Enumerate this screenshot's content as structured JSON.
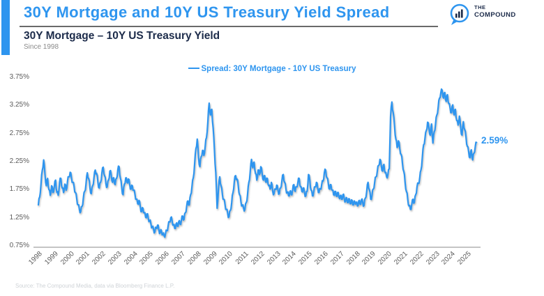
{
  "page": {
    "background": "#ffffff",
    "accent_color": "#2E95EF",
    "navy_color": "#1C2B4A"
  },
  "header": {
    "title": "30Y Mortgage and 10Y US Treasury Yield Spread",
    "logo": {
      "line1": "THE",
      "line2": "COMPOUND"
    }
  },
  "chart_header": {
    "title": "30Y Mortgage – 10Y US Treasury Yield",
    "subtitle": "Since 1998"
  },
  "legend": {
    "label": "Spread: 30Y Mortgage - 10Y US Treasury"
  },
  "annotation": {
    "last_value": "2.59%"
  },
  "footer": {
    "source": "Source: The Compound Media, data via Bloomberg Finance L.P."
  },
  "chart_data": {
    "type": "line",
    "title": "30Y Mortgage – 10Y US Treasury Yield",
    "xlabel": "",
    "ylabel": "",
    "unit": "%",
    "ylim": [
      0.75,
      3.75
    ],
    "xlim": [
      1998,
      2025.7
    ],
    "grid": false,
    "legend_position": "top-center",
    "x_tick_labels": [
      "1998",
      "1999",
      "2000",
      "2001",
      "2002",
      "2003",
      "2004",
      "2005",
      "2006",
      "2007",
      "2008",
      "2009",
      "2010",
      "2011",
      "2012",
      "2013",
      "2014",
      "2015",
      "2016",
      "2017",
      "2018",
      "2019",
      "2020",
      "2021",
      "2022",
      "2023",
      "2024",
      "2025"
    ],
    "y_tick_labels": [
      "0.75%",
      "1.25%",
      "1.75%",
      "2.25%",
      "2.75%",
      "3.25%",
      "3.75%"
    ],
    "last_value_pct": 2.59,
    "series": [
      {
        "name": "Spread: 30Y Mortgage - 10Y US Treasury",
        "color": "#2E95EF",
        "x_start_year": 1998,
        "x_frequency": "monthly",
        "values": [
          1.48,
          1.62,
          1.85,
          2.1,
          2.28,
          2.02,
          1.82,
          1.95,
          1.75,
          1.65,
          1.82,
          1.7,
          1.8,
          1.92,
          1.7,
          1.65,
          1.88,
          1.95,
          1.78,
          1.7,
          1.85,
          1.74,
          1.9,
          1.98,
          2.06,
          1.96,
          1.88,
          1.8,
          1.7,
          1.58,
          1.48,
          1.4,
          1.36,
          1.45,
          1.6,
          1.72,
          1.85,
          2.05,
          1.95,
          1.78,
          1.68,
          1.82,
          1.96,
          2.1,
          2.04,
          1.88,
          1.78,
          1.88,
          2.05,
          2.15,
          2.0,
          1.86,
          1.8,
          1.92,
          2.08,
          2.02,
          1.88,
          1.96,
          1.84,
          1.95,
          2.1,
          2.16,
          1.95,
          1.78,
          1.66,
          1.85,
          1.96,
          1.88,
          1.94,
          1.84,
          1.76,
          1.82,
          1.74,
          1.66,
          1.58,
          1.5,
          1.56,
          1.44,
          1.36,
          1.42,
          1.34,
          1.26,
          1.32,
          1.24,
          1.2,
          1.14,
          1.08,
          1.04,
          1.0,
          1.08,
          1.12,
          1.04,
          0.98,
          1.02,
          0.95,
          0.93,
          0.96,
          1.02,
          1.1,
          1.18,
          1.25,
          1.2,
          1.12,
          1.06,
          1.14,
          1.1,
          1.18,
          1.14,
          1.2,
          1.28,
          1.22,
          1.34,
          1.45,
          1.55,
          1.48,
          1.66,
          1.8,
          1.96,
          2.2,
          2.48,
          2.65,
          2.32,
          2.16,
          2.34,
          2.45,
          2.36,
          2.52,
          2.68,
          2.95,
          3.29,
          3.08,
          3.18,
          2.85,
          2.45,
          2.05,
          1.42,
          1.75,
          1.98,
          1.82,
          1.66,
          1.58,
          1.48,
          1.4,
          1.32,
          1.27,
          1.38,
          1.52,
          1.7,
          1.9,
          2.0,
          1.94,
          1.82,
          1.66,
          1.54,
          1.46,
          1.42,
          1.4,
          1.52,
          1.66,
          1.88,
          2.06,
          2.29,
          2.14,
          2.24,
          2.04,
          1.92,
          2.1,
          2.02,
          2.16,
          2.04,
          1.92,
          2.0,
          1.88,
          1.95,
          1.82,
          1.76,
          1.88,
          1.72,
          1.68,
          1.76,
          1.83,
          1.74,
          1.68,
          1.78,
          1.92,
          2.02,
          1.88,
          1.76,
          1.7,
          1.64,
          1.72,
          1.66,
          1.74,
          1.84,
          1.72,
          1.8,
          1.88,
          1.95,
          1.8,
          1.72,
          1.78,
          1.7,
          1.64,
          1.72,
          2.02,
          1.92,
          1.74,
          1.64,
          1.72,
          1.8,
          1.88,
          1.78,
          1.7,
          1.76,
          1.84,
          1.9,
          2.05,
          2.1,
          1.96,
          1.86,
          1.76,
          1.84,
          1.74,
          1.66,
          1.72,
          1.64,
          1.7,
          1.62,
          1.64,
          1.58,
          1.66,
          1.6,
          1.54,
          1.6,
          1.52,
          1.58,
          1.5,
          1.56,
          1.48,
          1.54,
          1.52,
          1.46,
          1.55,
          1.49,
          1.57,
          1.52,
          1.47,
          1.6,
          1.72,
          1.88,
          1.75,
          1.58,
          1.65,
          1.76,
          1.88,
          1.98,
          2.08,
          2.18,
          2.29,
          2.18,
          2.08,
          2.2,
          2.05,
          1.98,
          2.02,
          2.12,
          3.05,
          3.31,
          3.12,
          2.88,
          2.65,
          2.5,
          2.62,
          2.48,
          2.38,
          2.22,
          2.08,
          1.88,
          1.72,
          1.58,
          1.46,
          1.4,
          1.48,
          1.58,
          1.52,
          1.66,
          1.8,
          1.86,
          1.95,
          2.1,
          2.32,
          2.55,
          2.66,
          2.8,
          2.95,
          2.85,
          2.72,
          2.92,
          2.58,
          2.78,
          2.92,
          3.08,
          3.22,
          3.38,
          3.48,
          3.52,
          3.38,
          3.48,
          3.32,
          3.44,
          3.28,
          3.2,
          3.12,
          3.26,
          3.08,
          3.18,
          2.98,
          2.9,
          3.06,
          2.84,
          2.72,
          2.96,
          2.82,
          2.68,
          2.52,
          2.42,
          2.32,
          2.46,
          2.28,
          2.4,
          2.52,
          2.59
        ]
      }
    ]
  }
}
